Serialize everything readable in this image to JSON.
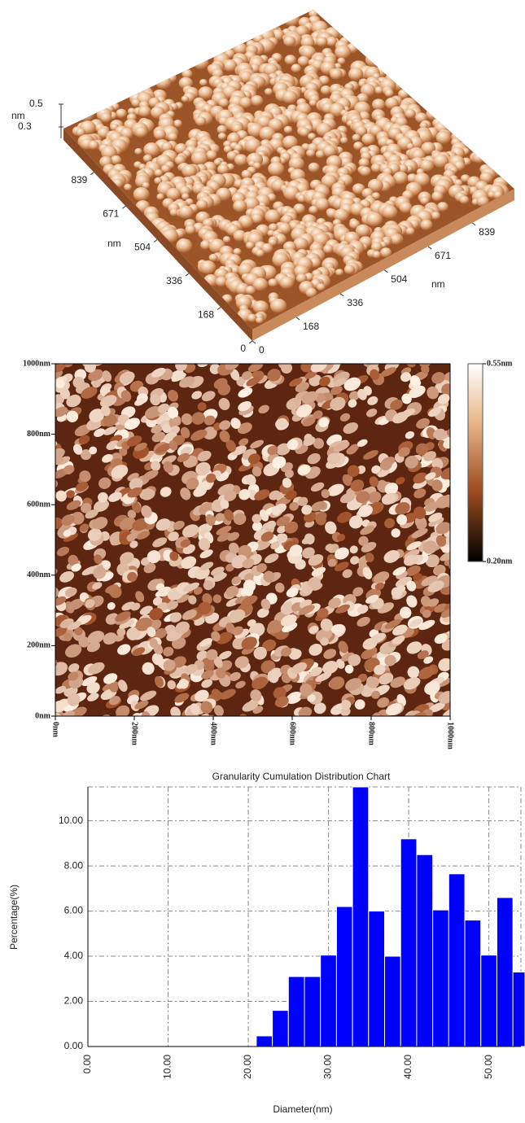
{
  "chart_data": [
    {
      "type": "surface",
      "xlabel": "nm",
      "ylabel": "nm",
      "zlabel": "nm",
      "xlim": [
        0,
        1000
      ],
      "ylim": [
        0,
        1000
      ],
      "xticks": [
        0,
        168,
        336,
        504,
        671,
        839
      ],
      "yticks": [
        0,
        168,
        336,
        504,
        671,
        839
      ],
      "zticks": [
        0.3,
        0.5
      ]
    },
    {
      "type": "image",
      "xlim": [
        0,
        1000
      ],
      "ylim": [
        0,
        1000
      ],
      "xticks": [
        {
          "value": 0,
          "label": "0nm"
        },
        {
          "value": 200,
          "label": "200nm"
        },
        {
          "value": 400,
          "label": "400nm"
        },
        {
          "value": 600,
          "label": "600nm"
        },
        {
          "value": 800,
          "label": "800nm"
        },
        {
          "value": 1000,
          "label": "1000nm"
        }
      ],
      "yticks": [
        {
          "value": 0,
          "label": "0nm"
        },
        {
          "value": 200,
          "label": "200nm"
        },
        {
          "value": 400,
          "label": "400nm"
        },
        {
          "value": 600,
          "label": "600nm"
        },
        {
          "value": 800,
          "label": "800nm"
        },
        {
          "value": 1000,
          "label": "1000nm"
        }
      ],
      "clim": [
        0.2,
        0.55
      ],
      "colorbar_ticks": [
        {
          "value": 0.55,
          "label": "0.55nm"
        },
        {
          "value": 0.2,
          "label": "0.20nm"
        }
      ]
    },
    {
      "type": "histogram",
      "title": "Granularity Cumulation Distribution Chart",
      "xlabel": "Diameter(nm)",
      "ylabel": "Percentage(%)",
      "color": "#0000ff",
      "grid": true,
      "bins": [
        21,
        23,
        25,
        27,
        29,
        31,
        33,
        35,
        37,
        39,
        41,
        43,
        45,
        47,
        49,
        51,
        53,
        55
      ],
      "values": [
        0.47,
        1.6,
        3.1,
        3.1,
        4.05,
        6.2,
        11.5,
        6.0,
        4.0,
        9.2,
        8.5,
        6.05,
        7.65,
        5.6,
        4.05,
        6.6,
        3.3
      ],
      "xlim": [
        0,
        54
      ],
      "ylim": [
        0,
        11.5
      ],
      "xticks": [
        {
          "value": 0,
          "label": "0.00"
        },
        {
          "value": 10,
          "label": "10.00"
        },
        {
          "value": 20,
          "label": "20.00"
        },
        {
          "value": 30,
          "label": "30.00"
        },
        {
          "value": 40,
          "label": "40.00"
        },
        {
          "value": 50,
          "label": "50.00"
        }
      ],
      "yticks": [
        {
          "value": 0,
          "label": "0.00"
        },
        {
          "value": 2,
          "label": "2.00"
        },
        {
          "value": 4,
          "label": "4.00"
        },
        {
          "value": 6,
          "label": "6.00"
        },
        {
          "value": 8,
          "label": "8.00"
        },
        {
          "value": 10,
          "label": "10.00"
        }
      ]
    }
  ]
}
